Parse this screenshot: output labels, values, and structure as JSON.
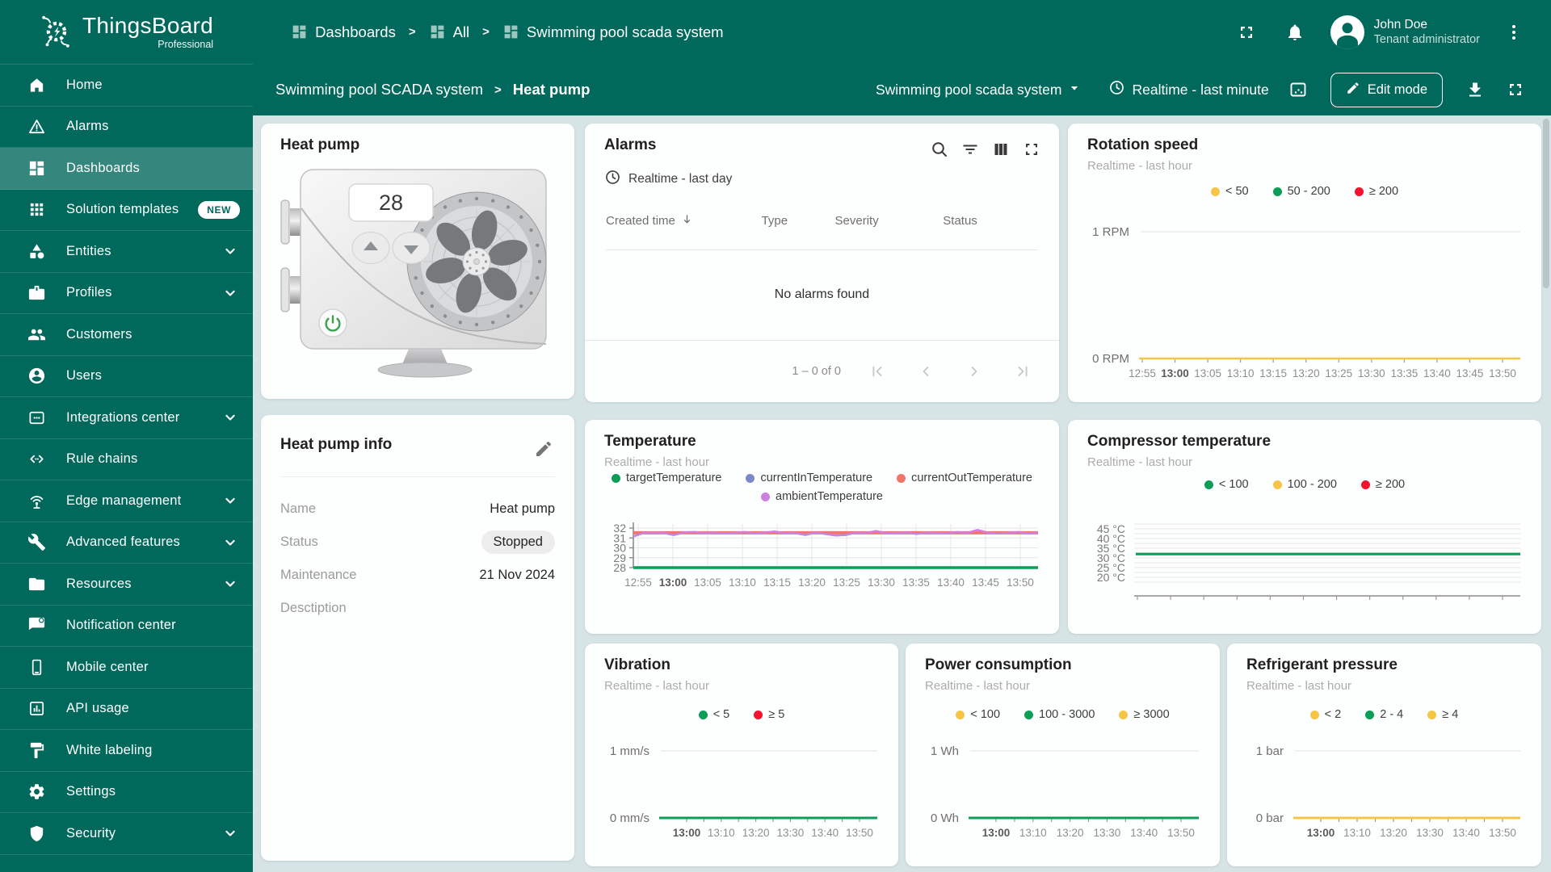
{
  "colors": {
    "accent": "#00695C",
    "content_bg": "#D7E4E6",
    "card_bg": "#FDFEFE",
    "yellow": "#F6C546",
    "green": "#0D9D58",
    "red": "#F2142F"
  },
  "header": {
    "logo": {
      "title": "ThingsBoard",
      "subtitle": "Professional"
    },
    "breadcrumbs": [
      {
        "label": "Dashboards",
        "icon": "dashboard"
      },
      {
        "label": "All",
        "icon": "dashboard"
      },
      {
        "label": "Swimming pool scada system",
        "icon": "dashboard"
      }
    ],
    "user": {
      "name": "John Doe",
      "role": "Tenant administrator"
    }
  },
  "toolbar": {
    "breadcrumb_root": "Swimming pool SCADA system",
    "breadcrumb_current": "Heat pump",
    "state_select": "Swimming pool scada system",
    "timewindow": "Realtime - last minute",
    "edit_button": "Edit mode"
  },
  "sidebar": {
    "items": [
      {
        "id": "home",
        "label": "Home",
        "icon": "home"
      },
      {
        "id": "alarms",
        "label": "Alarms",
        "icon": "warning"
      },
      {
        "id": "dashboards",
        "label": "Dashboards",
        "icon": "dashboard",
        "selected": true
      },
      {
        "id": "solution-templates",
        "label": "Solution templates",
        "icon": "apps",
        "badge": "NEW"
      },
      {
        "id": "entities",
        "label": "Entities",
        "icon": "entities",
        "expandable": true
      },
      {
        "id": "profiles",
        "label": "Profiles",
        "icon": "profiles",
        "expandable": true
      },
      {
        "id": "customers",
        "label": "Customers",
        "icon": "people"
      },
      {
        "id": "users",
        "label": "Users",
        "icon": "person"
      },
      {
        "id": "integrations-center",
        "label": "Integrations center",
        "icon": "integration",
        "expandable": true
      },
      {
        "id": "rule-chains",
        "label": "Rule chains",
        "icon": "rule"
      },
      {
        "id": "edge-management",
        "label": "Edge management",
        "icon": "edge",
        "expandable": true
      },
      {
        "id": "advanced-features",
        "label": "Advanced features",
        "icon": "build",
        "expandable": true
      },
      {
        "id": "resources",
        "label": "Resources",
        "icon": "folder",
        "expandable": true
      },
      {
        "id": "notification-center",
        "label": "Notification center",
        "icon": "notification"
      },
      {
        "id": "mobile-center",
        "label": "Mobile center",
        "icon": "mobile"
      },
      {
        "id": "api-usage",
        "label": "API usage",
        "icon": "api"
      },
      {
        "id": "white-labeling",
        "label": "White labeling",
        "icon": "paint"
      },
      {
        "id": "settings",
        "label": "Settings",
        "icon": "gear"
      },
      {
        "id": "security",
        "label": "Security",
        "icon": "shield",
        "expandable": true
      }
    ]
  },
  "heat_pump_card": {
    "title": "Heat pump",
    "display_value": "28"
  },
  "alarms_card": {
    "title": "Alarms",
    "timewindow": "Realtime - last day",
    "columns": [
      "Created time",
      "Type",
      "Severity",
      "Status"
    ],
    "empty_text": "No alarms found",
    "page_label": "1 – 0 of 0"
  },
  "info_card": {
    "title": "Heat pump info",
    "rows": [
      {
        "label": "Name",
        "value": "Heat pump"
      },
      {
        "label": "Status",
        "value": "Stopped",
        "pill": true
      },
      {
        "label": "Maintenance",
        "value": "21 Nov 2024"
      },
      {
        "label": "Desctiption",
        "value": ""
      }
    ]
  },
  "chart_data": [
    {
      "id": "rotation_speed",
      "type": "line",
      "title": "Rotation speed",
      "subtitle": "Realtime - last hour",
      "legend": [
        {
          "label": "< 50",
          "color": "#F6C546"
        },
        {
          "label": "50 - 200",
          "color": "#0D9D58"
        },
        {
          "label": "≥ 200",
          "color": "#F2142F"
        }
      ],
      "ylabel_top": "1 RPM",
      "ylabel_bottom": "0 RPM",
      "ylim": [
        0,
        1
      ],
      "x": [
        "12:55",
        "13:00",
        "13:05",
        "13:10",
        "13:15",
        "13:20",
        "13:25",
        "13:30",
        "13:35",
        "13:40",
        "13:45",
        "13:50"
      ],
      "bold_x": "13:00",
      "series": [
        {
          "name": "rotationSpeed",
          "color": "#F6C546",
          "value": 0,
          "width": 2.6
        }
      ]
    },
    {
      "id": "temperature",
      "type": "line",
      "title": "Temperature",
      "subtitle": "Realtime - last hour",
      "legend": [
        {
          "label": "targetTemperature",
          "color": "#0D9D58"
        },
        {
          "label": "currentInTemperature",
          "color": "#7B86CB"
        },
        {
          "label": "currentOutTemperature",
          "color": "#F2756B"
        },
        {
          "label": "ambientTemperature",
          "color": "#CC81DF"
        }
      ],
      "y_ticks": [
        32,
        31,
        30,
        29,
        28
      ],
      "ylim": [
        28,
        32
      ],
      "x": [
        "12:55",
        "13:00",
        "13:05",
        "13:10",
        "13:15",
        "13:20",
        "13:25",
        "13:30",
        "13:35",
        "13:40",
        "13:45",
        "13:50"
      ],
      "bold_x": "13:00",
      "series": [
        {
          "name": "targetTemperature",
          "color": "#0D9D58",
          "value": 28,
          "width": 3.4
        },
        {
          "name": "currentInTemperature",
          "color": "#7B86CB",
          "value": 31.5,
          "width": 2.4
        },
        {
          "name": "currentOutTemperature",
          "color": "#F2756B",
          "value": 31.52,
          "width": 4
        },
        {
          "name": "ambientTemperature",
          "color": "#CC81DF",
          "width": 2.6,
          "values": [
            31.15,
            31.5,
            31.55,
            31.5,
            31.3,
            31.55,
            31.6,
            31.5,
            31.55,
            31.45,
            31.5,
            31.6,
            31.45,
            31.55,
            31.65,
            31.45,
            31.5,
            31.3,
            31.55,
            31.4,
            31.25,
            31.3,
            31.55,
            31.5,
            31.7,
            31.45,
            31.5,
            31.55,
            31.4,
            31.55,
            31.5,
            31.45,
            31.6,
            31.5,
            31.8,
            31.55,
            31.45,
            31.5,
            31.6,
            31.45,
            31.55
          ]
        }
      ]
    },
    {
      "id": "compressor",
      "type": "line",
      "title": "Compressor temperature",
      "subtitle": "Realtime - last hour",
      "legend": [
        {
          "label": "< 100",
          "color": "#0D9D58"
        },
        {
          "label": "100 - 200",
          "color": "#F6C546"
        },
        {
          "label": "≥ 200",
          "color": "#F2142F"
        }
      ],
      "y_ticks": [
        "45 °C",
        "40 °C",
        "35 °C",
        "30 °C",
        "25 °C",
        "20 °C"
      ],
      "y_tick_values": [
        45,
        40,
        35,
        30,
        25,
        20
      ],
      "ylim": [
        17.5,
        47.5
      ],
      "x": [
        "12:55",
        "13:00",
        "13:05",
        "13:10",
        "13:15",
        "13:20",
        "13:25",
        "13:30",
        "13:35",
        "13:40",
        "13:45",
        "13:50"
      ],
      "bold_x": "13:00",
      "series": [
        {
          "name": "compressorTemperature",
          "color": "#0D9D58",
          "value": 32,
          "width": 3.2
        }
      ]
    },
    {
      "id": "vibration",
      "type": "line",
      "title": "Vibration",
      "subtitle": "Realtime - last hour",
      "legend": [
        {
          "label": "< 5",
          "color": "#0D9D58"
        },
        {
          "label": "≥ 5",
          "color": "#F2142F"
        }
      ],
      "ylabel_top": "1 mm/s",
      "ylabel_bottom": "0 mm/s",
      "ylim": [
        0,
        1
      ],
      "x": [
        "13:00",
        "13:10",
        "13:20",
        "13:30",
        "13:40",
        "13:50"
      ],
      "bold_x": "13:00",
      "series": [
        {
          "name": "vibration",
          "color": "#0D9D58",
          "value": 0,
          "width": 3
        }
      ]
    },
    {
      "id": "power",
      "type": "line",
      "title": "Power consumption",
      "subtitle": "Realtime - last hour",
      "legend": [
        {
          "label": "< 100",
          "color": "#F6C546"
        },
        {
          "label": "100 - 3000",
          "color": "#0D9D58"
        },
        {
          "label": "≥ 3000",
          "color": "#F6C546"
        }
      ],
      "ylabel_top": "1 Wh",
      "ylabel_bottom": "0 Wh",
      "ylim": [
        0,
        1
      ],
      "x": [
        "13:00",
        "13:10",
        "13:20",
        "13:30",
        "13:40",
        "13:50"
      ],
      "bold_x": "13:00",
      "series": [
        {
          "name": "powerConsumption",
          "color": "#0D9D58",
          "value": 0,
          "width": 3
        }
      ]
    },
    {
      "id": "refrigerant",
      "type": "line",
      "title": "Refrigerant pressure",
      "subtitle": "Realtime - last hour",
      "legend": [
        {
          "label": "< 2",
          "color": "#F6C546"
        },
        {
          "label": "2 - 4",
          "color": "#0D9D58"
        },
        {
          "label": "≥ 4",
          "color": "#F6C546"
        }
      ],
      "ylabel_top": "1 bar",
      "ylabel_bottom": "0 bar",
      "ylim": [
        0,
        1
      ],
      "x": [
        "13:00",
        "13:10",
        "13:20",
        "13:30",
        "13:40",
        "13:50"
      ],
      "bold_x": "13:00",
      "series": [
        {
          "name": "refrigerantPressure",
          "color": "#F6C546",
          "value": 0,
          "width": 3
        }
      ]
    }
  ]
}
